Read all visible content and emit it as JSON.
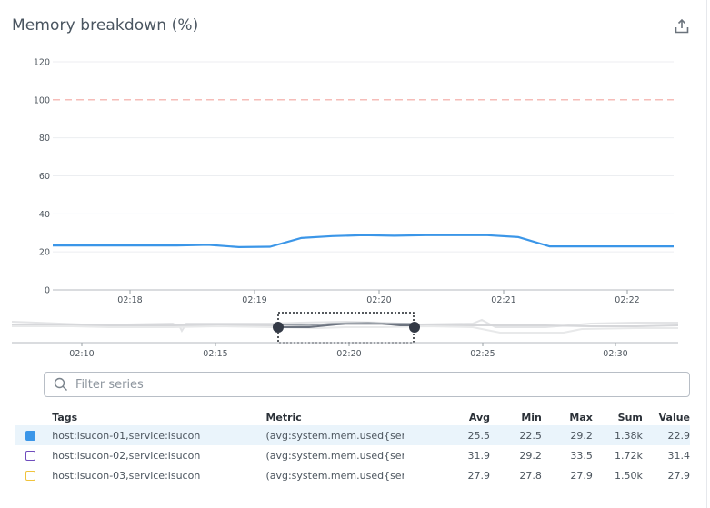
{
  "header": {
    "title": "Memory breakdown (%)",
    "export_icon": "share-export-icon"
  },
  "colors": {
    "series_1": "#3b96e8",
    "series_2": "#6f4dbd",
    "series_3": "#f0c33c",
    "threshold": "#f3a6a0",
    "grid": "#eceef1",
    "axis": "#b4b9bf",
    "selected_row_bg": "#eaf4fb",
    "brush_handle": "#343a46"
  },
  "chart_data": {
    "type": "line",
    "title": "Memory breakdown (%)",
    "xlabel": "",
    "ylabel": "",
    "ylim": [
      0,
      120
    ],
    "yticks": [
      0,
      20,
      40,
      60,
      80,
      100,
      120
    ],
    "xticks": [
      "02:18",
      "02:19",
      "02:20",
      "02:21",
      "02:22"
    ],
    "grid": true,
    "threshold": {
      "value": 100,
      "style": "dashed",
      "color": "#f3a6a0"
    },
    "x": [
      "02:17:22",
      "02:17:37",
      "02:17:52",
      "02:18:07",
      "02:18:22",
      "02:18:37",
      "02:18:52",
      "02:19:07",
      "02:19:22",
      "02:19:37",
      "02:19:52",
      "02:20:07",
      "02:20:22",
      "02:20:37",
      "02:20:52",
      "02:21:07",
      "02:21:22",
      "02:21:37",
      "02:21:52",
      "02:22:07",
      "02:22:22"
    ],
    "series": [
      {
        "name": "host:isucon-01,service:isucon",
        "color": "#3b96e8",
        "visible": true,
        "values": [
          23.4,
          23.4,
          23.4,
          23.4,
          23.4,
          23.7,
          22.5,
          22.7,
          27.3,
          28.3,
          28.8,
          28.5,
          28.8,
          28.8,
          28.8,
          27.8,
          22.9,
          22.9,
          22.9,
          22.9,
          22.9
        ]
      },
      {
        "name": "host:isucon-02,service:isucon",
        "color": "#6f4dbd",
        "visible": false,
        "values": []
      },
      {
        "name": "host:isucon-03,service:isucon",
        "color": "#f0c33c",
        "visible": false,
        "values": []
      }
    ],
    "overview": {
      "xticks": [
        "02:10",
        "02:15",
        "02:20",
        "02:25",
        "02:30"
      ],
      "brush_start": "02:17:22",
      "brush_end": "02:22:22"
    }
  },
  "filter": {
    "placeholder": "Filter series",
    "value": ""
  },
  "legend": {
    "columns": [
      "Tags",
      "Metric",
      "Avg",
      "Min",
      "Max",
      "Sum",
      "Value"
    ],
    "rows": [
      {
        "tags": "host:isucon-01,service:isucon",
        "metric": "(avg:system.mem.used{ser...",
        "avg": "25.5",
        "min": "22.5",
        "max": "29.2",
        "sum": "1.38k",
        "value": "22.9",
        "color": "#3b96e8",
        "checked": true,
        "selected": true
      },
      {
        "tags": "host:isucon-02,service:isucon",
        "metric": "(avg:system.mem.used{ser...",
        "avg": "31.9",
        "min": "29.2",
        "max": "33.5",
        "sum": "1.72k",
        "value": "31.4",
        "color": "#6f4dbd",
        "checked": false,
        "selected": false
      },
      {
        "tags": "host:isucon-03,service:isucon",
        "metric": "(avg:system.mem.used{ser...",
        "avg": "27.9",
        "min": "27.8",
        "max": "27.9",
        "sum": "1.50k",
        "value": "27.9",
        "color": "#f0c33c",
        "checked": false,
        "selected": false
      }
    ]
  }
}
